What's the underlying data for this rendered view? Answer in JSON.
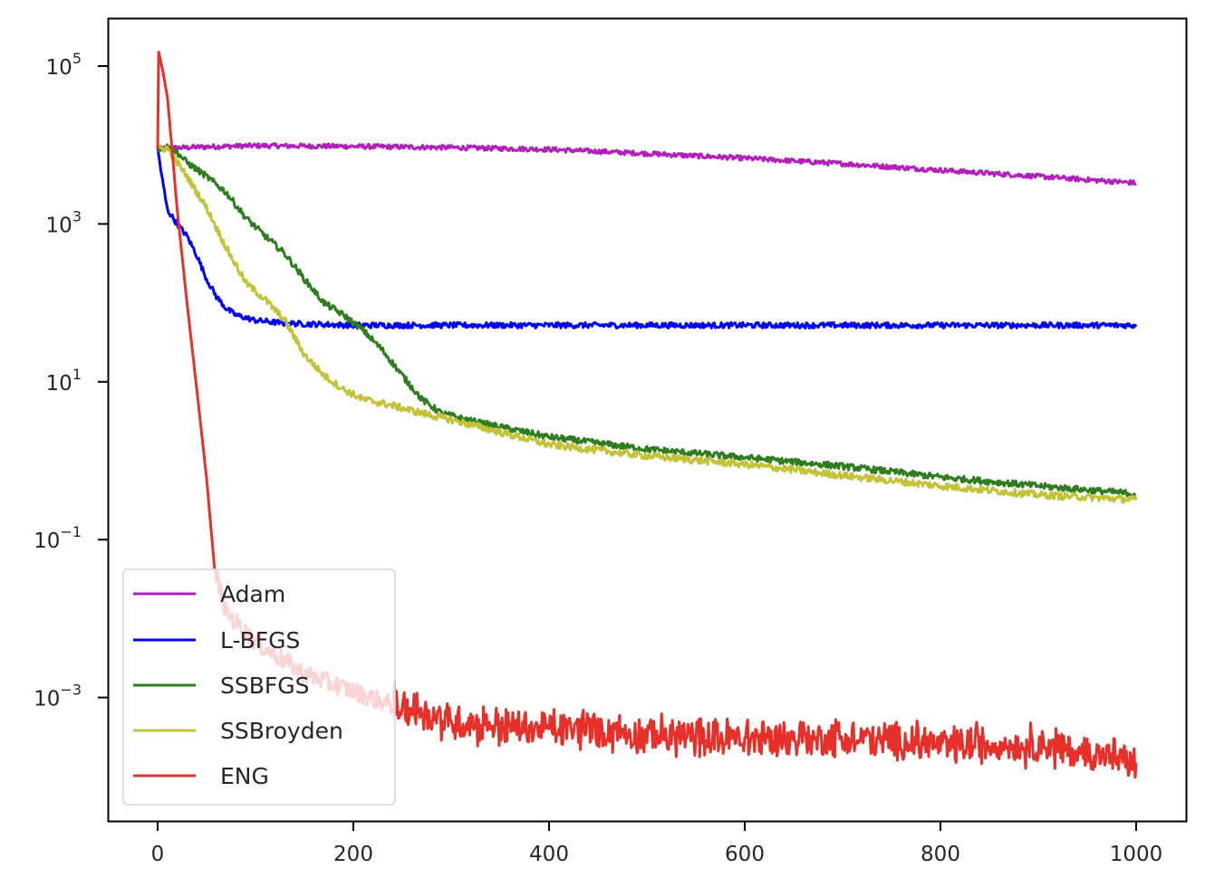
{
  "chart_data": {
    "type": "line",
    "title": "",
    "xlabel": "",
    "ylabel": "",
    "xscale": "linear",
    "yscale": "log",
    "xlim": [
      -50,
      1050
    ],
    "ylim": [
      7e-05,
      600000.0
    ],
    "grid": false,
    "legend_position": "lower left",
    "x_ticks": [
      0,
      200,
      400,
      600,
      800,
      1000
    ],
    "x_tick_labels": [
      "0",
      "200",
      "400",
      "600",
      "800",
      "1000"
    ],
    "y_ticks": [
      100000.0,
      1000.0,
      10.0,
      0.1,
      0.001
    ],
    "y_tick_labels": [
      {
        "base": "10",
        "exp": "5"
      },
      {
        "base": "10",
        "exp": "3"
      },
      {
        "base": "10",
        "exp": "1"
      },
      {
        "base": "10",
        "exp": "−1"
      },
      {
        "base": "10",
        "exp": "−3"
      }
    ],
    "series": [
      {
        "name": "Adam",
        "color": "#b31fbd",
        "x": [
          0,
          50,
          100,
          200,
          300,
          400,
          500,
          600,
          700,
          800,
          900,
          1000
        ],
        "values": [
          9000,
          9500,
          9800,
          9600,
          9300,
          8800,
          7800,
          6800,
          5800,
          4800,
          4000,
          3300
        ],
        "noise": 0.03
      },
      {
        "name": "L-BFGS",
        "color": "#0000ff",
        "x": [
          0,
          5,
          10,
          20,
          30,
          40,
          50,
          60,
          70,
          80,
          100,
          130,
          200,
          300,
          400,
          500,
          600,
          700,
          800,
          900,
          1000
        ],
        "values": [
          9000,
          3500,
          1500,
          1000,
          700,
          400,
          200,
          120,
          85,
          70,
          60,
          55,
          52,
          52,
          52,
          52,
          52,
          52,
          52,
          52,
          52
        ],
        "noise": 0.035
      },
      {
        "name": "SSBFGS",
        "color": "#2e7d1e",
        "x": [
          0,
          10,
          20,
          30,
          50,
          70,
          90,
          110,
          130,
          150,
          170,
          190,
          210,
          230,
          250,
          270,
          290,
          320,
          400,
          500,
          600,
          700,
          800,
          900,
          1000
        ],
        "values": [
          9000,
          9500,
          8000,
          6000,
          4000,
          2500,
          1200,
          700,
          420,
          200,
          100,
          70,
          45,
          25,
          12,
          6,
          4,
          3.2,
          2.0,
          1.4,
          1.1,
          0.85,
          0.62,
          0.48,
          0.38
        ],
        "noise": 0.04
      },
      {
        "name": "SSBroyden",
        "color": "#c3c33a",
        "x": [
          0,
          10,
          20,
          30,
          50,
          70,
          90,
          110,
          130,
          150,
          170,
          190,
          210,
          240,
          270,
          300,
          350,
          400,
          500,
          600,
          700,
          800,
          900,
          1000
        ],
        "values": [
          9000,
          9000,
          6000,
          4000,
          1600,
          500,
          180,
          110,
          60,
          22,
          12,
          8,
          6,
          5,
          4,
          3.3,
          2.3,
          1.6,
          1.15,
          0.9,
          0.65,
          0.48,
          0.37,
          0.32
        ],
        "noise": 0.045
      },
      {
        "name": "ENG",
        "color": "#e8302a",
        "x": [
          0,
          1,
          5,
          10,
          15,
          20,
          30,
          40,
          50,
          58,
          70,
          100,
          150,
          200,
          240,
          300,
          400,
          500,
          600,
          700,
          800,
          900,
          1000
        ],
        "values": [
          9000,
          150000,
          90000,
          40000,
          8000,
          1500,
          100,
          8,
          0.6,
          0.045,
          0.012,
          0.005,
          0.002,
          0.0012,
          0.0008,
          0.0005,
          0.0004,
          0.00035,
          0.0003,
          0.0003,
          0.00025,
          0.00025,
          0.00015
        ],
        "noise": 0.18,
        "noise_start": 60
      }
    ]
  }
}
